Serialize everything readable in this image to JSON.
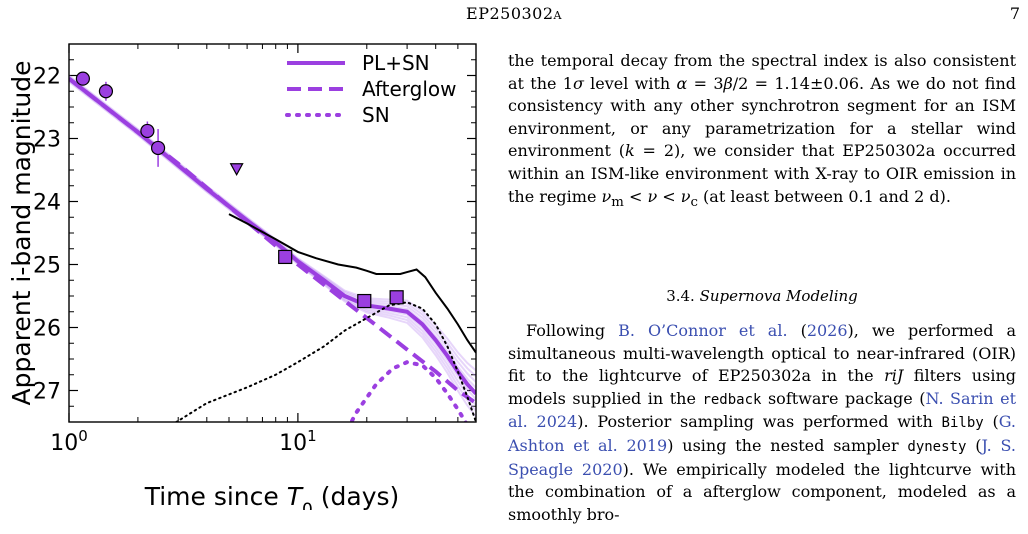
{
  "header": {
    "title": "EP250302a",
    "page_number": "7"
  },
  "chart_data": {
    "type": "line",
    "xlabel": "Time since T_0 (days)",
    "ylabel": "Apparent i-band magnitude",
    "xscale": "log",
    "xlim": [
      1,
      60
    ],
    "ylim": [
      27.5,
      21.5
    ],
    "y_inverted": true,
    "xtick_labels": [
      "10^0",
      "10^1"
    ],
    "ytick_labels": [
      "22",
      "23",
      "24",
      "25",
      "26",
      "27"
    ],
    "legend": [
      "PL+SN",
      "Afterglow",
      "SN"
    ],
    "legend_placement": "top-right",
    "series": [
      {
        "name": "PL+SN",
        "style": "solid",
        "color": "#9b3fe0",
        "x": [
          1,
          2,
          4,
          6,
          8,
          10,
          13,
          16,
          20,
          25,
          30,
          35,
          40,
          45,
          50,
          55,
          60
        ],
        "y": [
          22.05,
          22.9,
          23.8,
          24.3,
          24.65,
          24.95,
          25.25,
          25.5,
          25.65,
          25.7,
          25.75,
          25.95,
          26.2,
          26.45,
          26.7,
          26.9,
          27.05
        ]
      },
      {
        "name": "Afterglow",
        "style": "dashed",
        "color": "#9b3fe0",
        "x": [
          1,
          3,
          10,
          20,
          30,
          40,
          50,
          60
        ],
        "y": [
          22.05,
          23.4,
          25.0,
          25.85,
          26.35,
          26.7,
          27.0,
          27.2
        ]
      },
      {
        "name": "SN",
        "style": "dotted",
        "color": "#9b3fe0",
        "x": [
          15,
          18,
          22,
          26,
          30,
          35,
          40,
          45,
          50,
          55,
          60
        ],
        "y": [
          27.9,
          27.35,
          26.9,
          26.65,
          26.55,
          26.6,
          26.8,
          27.05,
          27.3,
          27.55,
          27.8
        ]
      },
      {
        "name": "",
        "style": "solid",
        "color": "#000000",
        "x": [
          5,
          6,
          8,
          10,
          12,
          15,
          18,
          20,
          22,
          25,
          28,
          30,
          33,
          36,
          40,
          45,
          50,
          55,
          60
        ],
        "y": [
          24.2,
          24.35,
          24.6,
          24.8,
          24.9,
          25.0,
          25.05,
          25.1,
          25.15,
          25.15,
          25.15,
          25.12,
          25.08,
          25.2,
          25.45,
          25.7,
          25.95,
          26.2,
          26.4
        ]
      },
      {
        "name": "",
        "style": "dotted",
        "color": "#000000",
        "x": [
          2.8,
          4,
          6,
          8,
          10,
          13,
          16,
          20,
          25,
          30,
          35,
          40,
          45,
          50,
          55,
          60
        ],
        "y": [
          27.55,
          27.2,
          26.95,
          26.75,
          26.55,
          26.3,
          26.05,
          25.85,
          25.65,
          25.6,
          25.7,
          25.95,
          26.3,
          26.7,
          27.1,
          27.5
        ]
      }
    ],
    "points": [
      {
        "marker": "circle",
        "x": 1.15,
        "y": 22.05,
        "yerr": 0
      },
      {
        "marker": "circle",
        "x": 1.45,
        "y": 22.25,
        "yerr": 0.15
      },
      {
        "marker": "circle",
        "x": 2.2,
        "y": 22.88,
        "yerr": 0.15
      },
      {
        "marker": "circle",
        "x": 2.45,
        "y": 23.15,
        "yerr": 0.3
      }
    ],
    "upper_limits": [
      {
        "marker": "triangle-down",
        "x": 5.4,
        "y": 23.48
      }
    ],
    "squares": [
      {
        "marker": "square",
        "x": 8.8,
        "y": 24.88
      },
      {
        "marker": "square",
        "x": 19.5,
        "y": 25.58
      },
      {
        "marker": "square",
        "x": 27,
        "y": 25.52
      }
    ]
  }
}
